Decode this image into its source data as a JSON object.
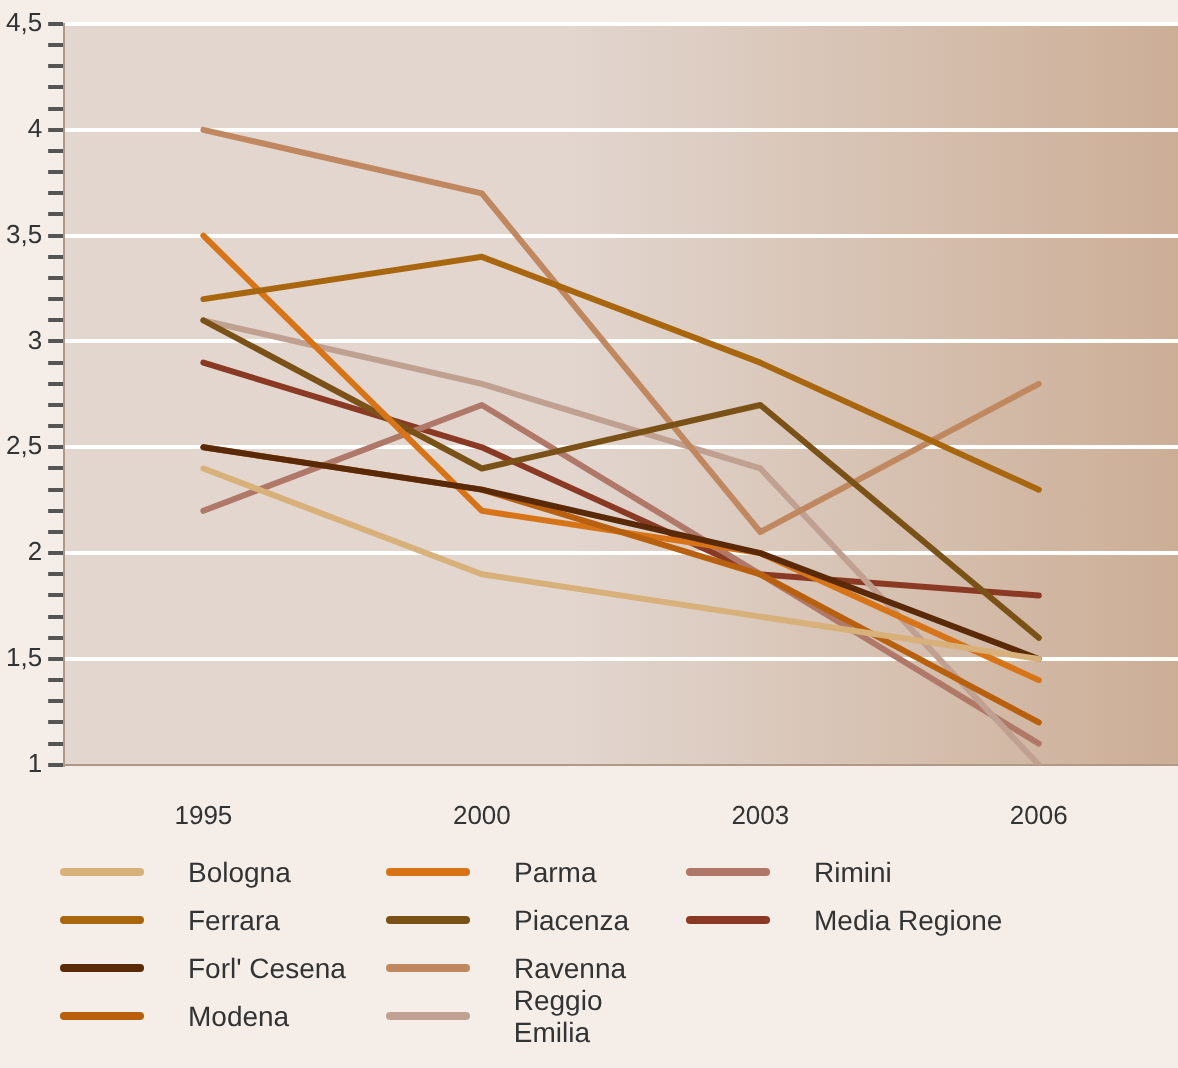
{
  "chart_data": {
    "type": "line",
    "categories": [
      "1995",
      "2000",
      "2003",
      "2006"
    ],
    "series": [
      {
        "name": "Bologna",
        "color": "#d8b07a",
        "values": [
          2.4,
          1.9,
          1.7,
          1.5
        ]
      },
      {
        "name": "Ferrara",
        "color": "#a8660e",
        "values": [
          3.2,
          3.4,
          2.9,
          2.3
        ]
      },
      {
        "name": "Forl' Cesena",
        "color": "#5a2a08",
        "values": [
          2.5,
          2.3,
          2.0,
          1.5
        ]
      },
      {
        "name": "Modena",
        "color": "#b8600e",
        "values": [
          2.5,
          2.3,
          1.9,
          1.2
        ]
      },
      {
        "name": "Parma",
        "color": "#d87418",
        "values": [
          3.5,
          2.2,
          2.0,
          1.4
        ]
      },
      {
        "name": "Piacenza",
        "color": "#7a5218",
        "values": [
          3.1,
          2.4,
          2.7,
          1.6
        ]
      },
      {
        "name": "Ravenna",
        "color": "#c08860",
        "values": [
          4.0,
          3.7,
          2.1,
          2.8
        ]
      },
      {
        "name": "Reggio Emilia",
        "color": "#c0a090",
        "values": [
          3.1,
          2.8,
          2.4,
          1.0
        ]
      },
      {
        "name": "Rimini",
        "color": "#b07868",
        "values": [
          2.2,
          2.7,
          1.9,
          1.1
        ]
      },
      {
        "name": "Media Regione",
        "color": "#8a3a24",
        "values": [
          2.9,
          2.5,
          1.9,
          1.8
        ]
      }
    ],
    "ylim": [
      1,
      4.5
    ],
    "yticks": [
      1,
      {
        "value": 1.1,
        "label": null
      },
      {
        "value": 1.2,
        "label": null
      },
      {
        "value": 1.3,
        "label": null
      },
      {
        "value": 1.4,
        "label": null
      },
      {
        "value": 1.5,
        "label": "1,5"
      },
      {
        "value": 1.6,
        "label": null
      },
      {
        "value": 1.7,
        "label": null
      },
      {
        "value": 1.8,
        "label": null
      },
      {
        "value": 1.9,
        "label": null
      },
      2,
      {
        "value": 2.1,
        "label": null
      },
      {
        "value": 2.2,
        "label": null
      },
      {
        "value": 2.3,
        "label": null
      },
      {
        "value": 2.4,
        "label": null
      },
      {
        "value": 2.5,
        "label": "2,5"
      },
      {
        "value": 2.6,
        "label": null
      },
      {
        "value": 2.7,
        "label": null
      },
      {
        "value": 2.8,
        "label": null
      },
      {
        "value": 2.9,
        "label": null
      },
      3,
      {
        "value": 3.1,
        "label": null
      },
      {
        "value": 3.2,
        "label": null
      },
      {
        "value": 3.3,
        "label": null
      },
      {
        "value": 3.4,
        "label": null
      },
      {
        "value": 3.5,
        "label": "3,5"
      },
      {
        "value": 3.6,
        "label": null
      },
      {
        "value": 3.7,
        "label": null
      },
      {
        "value": 3.8,
        "label": null
      },
      {
        "value": 3.9,
        "label": null
      },
      4,
      {
        "value": 4.1,
        "label": null
      },
      {
        "value": 4.2,
        "label": null
      },
      {
        "value": 4.3,
        "label": null
      },
      {
        "value": 4.4,
        "label": null
      },
      {
        "value": 4.5,
        "label": "4,5"
      }
    ],
    "grid": "y",
    "legend": "bottom",
    "marker": "none",
    "line_style": "solid"
  }
}
